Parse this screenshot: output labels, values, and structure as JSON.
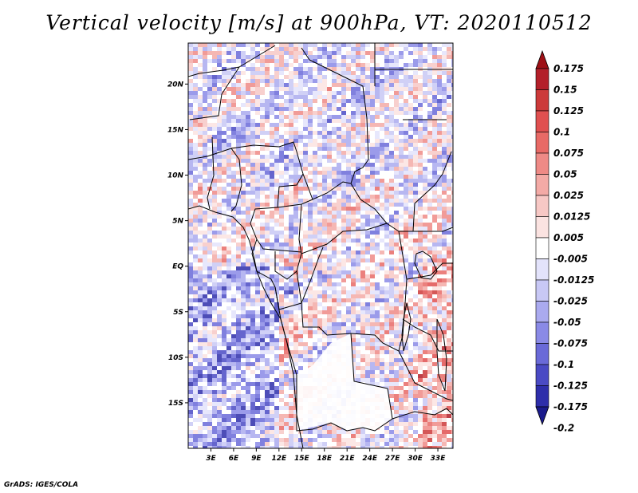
{
  "title": "Vertical velocity [m/s] at 900hPa, VT: 2020110512",
  "credit": "GrADS: IGES/COLA",
  "map": {
    "lon_range": [
      0,
      35
    ],
    "lat_range": [
      -20,
      24.5
    ],
    "lat_ticks": [
      {
        "label": "20N",
        "value": 20
      },
      {
        "label": "15N",
        "value": 15
      },
      {
        "label": "10N",
        "value": 10
      },
      {
        "label": "5N",
        "value": 5
      },
      {
        "label": "EQ",
        "value": 0
      },
      {
        "label": "5S",
        "value": -5
      },
      {
        "label": "10S",
        "value": -10
      },
      {
        "label": "15S",
        "value": -15
      }
    ],
    "lon_ticks": [
      {
        "label": "3E",
        "value": 3
      },
      {
        "label": "6E",
        "value": 6
      },
      {
        "label": "9E",
        "value": 9
      },
      {
        "label": "12E",
        "value": 12
      },
      {
        "label": "15E",
        "value": 15
      },
      {
        "label": "18E",
        "value": 18
      },
      {
        "label": "21E",
        "value": 21
      },
      {
        "label": "24E",
        "value": 24
      },
      {
        "label": "27E",
        "value": 27
      },
      {
        "label": "30E",
        "value": 30
      },
      {
        "label": "33E",
        "value": 33
      }
    ]
  },
  "colorbar": {
    "labels": [
      "0.175",
      "0.15",
      "0.125",
      "0.1",
      "0.075",
      "0.05",
      "0.025",
      "0.0125",
      "0.005",
      "-0.005",
      "-0.0125",
      "-0.025",
      "-0.05",
      "-0.075",
      "-0.1",
      "-0.125",
      "-0.175",
      "-0.2"
    ],
    "colors": [
      "#9e1016",
      "#b3202a",
      "#cc3a3a",
      "#e05050",
      "#e86a66",
      "#ee8a86",
      "#f3aaa6",
      "#f7c8c5",
      "#fbe3e1",
      "#ffffff",
      "#e3e3fb",
      "#c8c8f5",
      "#aaaaef",
      "#8a8ae6",
      "#6a6ad8",
      "#4a4ac4",
      "#2e2eaa",
      "#1b1b8c"
    ]
  },
  "field": {
    "bands": [
      {
        "lat": 24,
        "lon_from": 0,
        "lon_to": 35,
        "tone": "mixed"
      },
      {
        "lat": 0,
        "lon_from": 0,
        "lon_to": 12,
        "tone": "negative"
      },
      {
        "lat": -15,
        "lon_from": 13,
        "lon_to": 24,
        "tone": "neutral"
      }
    ]
  }
}
